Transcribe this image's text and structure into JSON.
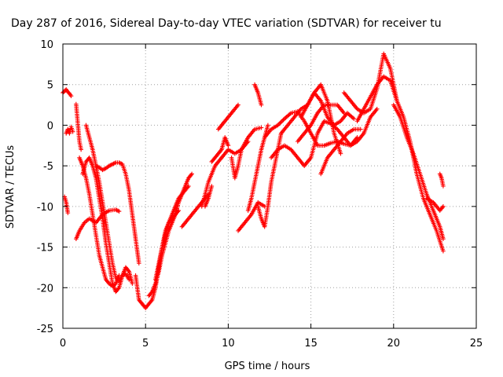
{
  "chart_data": {
    "type": "scatter",
    "title": "Day 287 of 2016, Sidereal Day-to-day VTEC variation (SDTVAR) for receiver tu",
    "xlabel": "GPS time / hours",
    "ylabel": "SDTVAR / TECUs",
    "xlim": [
      0,
      25
    ],
    "ylim": [
      -25,
      10
    ],
    "x_ticks": [
      0,
      5,
      10,
      15,
      20,
      25
    ],
    "y_ticks": [
      -25,
      -20,
      -15,
      -10,
      -5,
      0,
      5,
      10
    ],
    "grid": true,
    "marker": "plus",
    "color": "#ff0000",
    "series": [
      {
        "x": [
          0.0,
          0.1,
          0.2,
          0.3,
          0.4,
          0.5
        ],
        "values": [
          4.0,
          4.2,
          4.4,
          4.1,
          3.9,
          3.6
        ]
      },
      {
        "x": [
          0.1,
          0.2,
          0.3
        ],
        "values": [
          -8.8,
          -9.5,
          -10.8
        ]
      },
      {
        "x": [
          0.2,
          0.3,
          0.4,
          0.5,
          0.6
        ],
        "values": [
          -1.0,
          -0.5,
          -1.0,
          -0.2,
          -0.8
        ]
      },
      {
        "x": [
          0.8,
          1.0,
          1.1
        ],
        "values": [
          2.6,
          -2.0,
          -3.0
        ]
      },
      {
        "x": [
          0.8,
          1.0,
          1.3,
          1.6,
          2.0,
          2.4,
          2.8,
          3.2,
          3.4
        ],
        "values": [
          -14,
          -13,
          -12,
          -11.5,
          -12,
          -11,
          -10.5,
          -10.4,
          -10.6
        ]
      },
      {
        "x": [
          1.4,
          1.6,
          1.8,
          2.0,
          2.2,
          2.4,
          2.6,
          2.8,
          3.0,
          3.2,
          3.4,
          3.6,
          3.8,
          4.0
        ],
        "values": [
          0,
          -1.5,
          -3,
          -5,
          -7,
          -9.5,
          -12,
          -14.5,
          -17,
          -18.8,
          -19.2,
          -18.5,
          -18.3,
          -19
        ]
      },
      {
        "x": [
          1.2,
          1.4,
          1.6,
          1.8,
          2.0,
          2.2,
          2.4,
          2.6,
          2.8,
          3.0,
          3.2,
          3.4,
          3.6,
          3.8,
          4.0,
          4.2
        ],
        "values": [
          -6,
          -4.5,
          -4,
          -5,
          -6.5,
          -9,
          -11.5,
          -14.5,
          -17,
          -19.5,
          -20.5,
          -20,
          -18.5,
          -17.5,
          -18,
          -19.5
        ]
      },
      {
        "x": [
          1.0,
          1.2,
          1.4,
          1.6,
          1.8,
          2.0,
          2.2,
          2.4,
          2.6,
          2.8,
          3.0,
          3.2,
          3.4
        ],
        "values": [
          -4,
          -5,
          -6.5,
          -8.5,
          -11,
          -13.5,
          -16,
          -17.5,
          -19,
          -19.5,
          -19.8,
          -19.5,
          -18.5
        ]
      },
      {
        "x": [
          2.0,
          2.2,
          2.4,
          2.6,
          2.8,
          3.0,
          3.2,
          3.4,
          3.6,
          3.8,
          4.0,
          4.2,
          4.4,
          4.6
        ],
        "values": [
          -5,
          -5.2,
          -5.5,
          -5.3,
          -5.0,
          -4.8,
          -4.6,
          -4.6,
          -4.8,
          -6,
          -8,
          -11,
          -14,
          -17
        ]
      },
      {
        "x": [
          4.4,
          4.6,
          4.8,
          5.0,
          5.2,
          5.4,
          5.6,
          5.8,
          6.0,
          6.2,
          6.4,
          6.6,
          6.8,
          7.0
        ],
        "values": [
          -18.5,
          -21.5,
          -22,
          -22.5,
          -22,
          -21.5,
          -20,
          -17.5,
          -15,
          -13,
          -12,
          -11.5,
          -11,
          -10.5
        ]
      },
      {
        "x": [
          5.6,
          5.8,
          6.0,
          6.2,
          6.4,
          6.6,
          6.8,
          7.0,
          7.2,
          7.4,
          7.6
        ],
        "values": [
          -19,
          -17,
          -15,
          -13.5,
          -12,
          -11,
          -10,
          -9,
          -8.5,
          -8,
          -7.5
        ]
      },
      {
        "x": [
          5.2,
          5.4,
          5.6,
          5.8,
          6.0,
          6.2,
          6.4,
          6.6,
          6.8,
          7.0,
          7.2,
          7.4,
          7.6,
          7.8
        ],
        "values": [
          -21,
          -20.5,
          -19.5,
          -18,
          -16,
          -14.5,
          -13,
          -12,
          -11,
          -9.5,
          -8.5,
          -7.5,
          -6.5,
          -6
        ]
      },
      {
        "x": [
          7.2,
          7.6,
          8.0,
          8.4,
          8.8
        ],
        "values": [
          -12.5,
          -11.5,
          -10.5,
          -9.5,
          -8.5
        ]
      },
      {
        "x": [
          8.6,
          8.8,
          9.0
        ],
        "values": [
          -10,
          -9,
          -7.5
        ]
      },
      {
        "x": [
          8.4,
          8.8,
          9.2,
          9.6,
          10.0,
          10.4,
          10.8,
          11.2,
          11.6,
          12.0
        ],
        "values": [
          -10,
          -7,
          -5,
          -4,
          -3,
          -3.5,
          -3,
          -1.5,
          -0.5,
          -0.3
        ]
      },
      {
        "x": [
          9.0,
          9.2,
          9.4,
          9.6,
          9.8,
          10.0
        ],
        "values": [
          -4.5,
          -4,
          -3.5,
          -3,
          -1.5,
          -2.5
        ]
      },
      {
        "x": [
          9.4,
          9.8,
          10.2,
          10.6
        ],
        "values": [
          -0.5,
          0.5,
          1.5,
          2.5
        ]
      },
      {
        "x": [
          10.2,
          10.4,
          10.6,
          10.8,
          11.0,
          11.2
        ],
        "values": [
          -4,
          -6.5,
          -5,
          -3,
          -2.5,
          -2
        ]
      },
      {
        "x": [
          10.6,
          11.0,
          11.4,
          11.8,
          12.2
        ],
        "values": [
          -13,
          -12,
          -11,
          -9.5,
          -10
        ]
      },
      {
        "x": [
          11.2,
          11.4,
          11.6,
          11.8,
          12.0,
          12.2,
          12.4
        ],
        "values": [
          -10.5,
          -9,
          -7,
          -5,
          -3,
          -1.5,
          0
        ]
      },
      {
        "x": [
          11.6,
          11.8,
          12.0
        ],
        "values": [
          5,
          4,
          2.5
        ]
      },
      {
        "x": [
          11.8,
          12.0,
          12.2,
          12.4,
          12.6,
          12.8,
          13.0,
          13.2
        ],
        "values": [
          -10,
          -11.5,
          -12.5,
          -10,
          -7,
          -5,
          -3,
          -1
        ]
      },
      {
        "x": [
          12.2,
          12.6,
          13.0,
          13.4,
          13.8,
          14.2,
          14.6,
          15.0,
          15.4,
          15.8,
          16.2,
          16.6,
          17.0,
          17.4,
          17.8
        ],
        "values": [
          -1.5,
          -0.5,
          0,
          0.8,
          1.5,
          1.7,
          0.5,
          -1,
          -2.5,
          -2.5,
          -2.2,
          -2,
          -2.3,
          -2.5,
          -1.5
        ]
      },
      {
        "x": [
          12.6,
          13.0,
          13.4,
          13.8,
          14.2,
          14.6,
          15.0,
          15.4,
          15.8,
          16.2,
          16.6,
          17.0,
          17.4,
          17.8,
          18.2,
          18.6,
          19.0
        ],
        "values": [
          -4,
          -3,
          -2.5,
          -3,
          -4,
          -5,
          -4,
          -1,
          0.5,
          0.2,
          -0.5,
          -1.5,
          -2.5,
          -2,
          -1,
          1,
          2
        ]
      },
      {
        "x": [
          14.2,
          14.6,
          15.0,
          15.4,
          15.8,
          16.2,
          16.6,
          17.0
        ],
        "values": [
          -2,
          -1,
          0,
          1.5,
          2.5,
          2.5,
          2.5,
          1.5
        ]
      },
      {
        "x": [
          14.4,
          14.8,
          15.2,
          15.6,
          16.0,
          16.4,
          16.8,
          17.2,
          17.6
        ],
        "values": [
          1,
          2.5,
          4,
          3,
          1,
          0,
          0.5,
          1.5,
          0.8
        ]
      },
      {
        "x": [
          13.2,
          13.6,
          14.0,
          14.4,
          14.8,
          15.2,
          15.6,
          16.0,
          16.4,
          16.8
        ],
        "values": [
          -1,
          0,
          1,
          2,
          2.5,
          4,
          5,
          3,
          -1,
          -3.5
        ]
      },
      {
        "x": [
          15.6,
          16.0,
          16.4,
          16.8,
          17.2,
          17.6,
          18.0
        ],
        "values": [
          -6,
          -4,
          -3,
          -2,
          -1,
          -0.5,
          -0.5
        ]
      },
      {
        "x": [
          17.0,
          17.4,
          17.8,
          18.2,
          18.6,
          19.0,
          19.4,
          19.8,
          20.2
        ],
        "values": [
          4,
          3,
          2,
          1.5,
          2,
          4.5,
          8.8,
          7,
          3
        ]
      },
      {
        "x": [
          17.8,
          18.2,
          18.6,
          19.0,
          19.4,
          19.8,
          20.2,
          20.6,
          21.0,
          21.4,
          21.8,
          22.2,
          22.6,
          23.0
        ],
        "values": [
          0.5,
          2,
          3.5,
          5,
          6,
          5.5,
          3,
          1,
          -2,
          -6,
          -9,
          -11,
          -13,
          -15.5
        ]
      },
      {
        "x": [
          20.0,
          20.4,
          20.8,
          21.2,
          21.6,
          22.0,
          22.4,
          22.8,
          23.0
        ],
        "values": [
          2.5,
          1,
          -1.5,
          -3.5,
          -6,
          -8.5,
          -10.5,
          -12.5,
          -14
        ]
      },
      {
        "x": [
          22.0,
          22.4,
          22.8,
          23.0
        ],
        "values": [
          -9,
          -9.5,
          -10.5,
          -10
        ]
      },
      {
        "x": [
          22.8,
          22.9,
          23.0
        ],
        "values": [
          -6,
          -6.5,
          -7.5
        ]
      }
    ]
  }
}
